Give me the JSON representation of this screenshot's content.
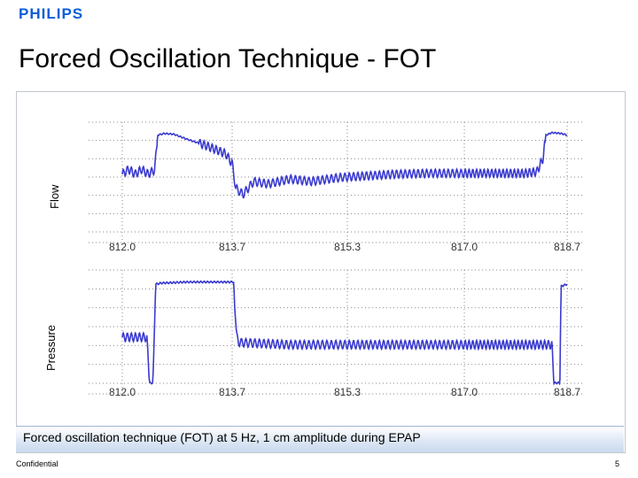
{
  "header": {
    "logo": "PHILIPS",
    "title": "Forced Oscillation Technique - FOT"
  },
  "caption": "Forced oscillation technique (FOT) at 5 Hz,  1 cm amplitude during EPAP",
  "footer": {
    "left": "Confidential",
    "page": "5"
  },
  "colors": {
    "trace": "#3a3ad0",
    "grid": "#8a8a8a",
    "brand": "#0b5ed7"
  },
  "chart_data": [
    {
      "type": "line",
      "ylabel": "Flow",
      "x_ticks": [
        "812.0",
        "813.7",
        "815.3",
        "817.0",
        "818.7"
      ],
      "xlim": [
        812.0,
        818.7
      ],
      "ylim": [
        0,
        1
      ],
      "grid": true,
      "series": [
        {
          "x": [
            812.0,
            812.1,
            812.2,
            812.3,
            812.4,
            812.5,
            812.55,
            812.65,
            812.8,
            813.0,
            813.3,
            813.6,
            813.7,
            813.75,
            813.85,
            814.0,
            814.2,
            814.5,
            814.8,
            815.2,
            815.6,
            816.0,
            816.5,
            817.0,
            817.5,
            818.0,
            818.2,
            818.3,
            818.35,
            818.45,
            818.6,
            818.7
          ],
          "y": [
            0.47,
            0.53,
            0.47,
            0.53,
            0.47,
            0.52,
            0.95,
            0.97,
            0.96,
            0.9,
            0.82,
            0.72,
            0.6,
            0.3,
            0.22,
            0.38,
            0.35,
            0.41,
            0.38,
            0.43,
            0.45,
            0.47,
            0.48,
            0.48,
            0.48,
            0.48,
            0.5,
            0.66,
            0.95,
            0.98,
            0.97,
            0.95
          ],
          "oscillation_amplitude": 0.05
        }
      ]
    },
    {
      "type": "line",
      "ylabel": "Pressure",
      "x_ticks": [
        "812.0",
        "813.7",
        "815.3",
        "817.0",
        "818.7"
      ],
      "xlim": [
        812.0,
        818.7
      ],
      "ylim": [
        0,
        1
      ],
      "grid": true,
      "series": [
        {
          "x": [
            812.0,
            812.15,
            812.3,
            812.38,
            812.42,
            812.47,
            812.52,
            812.6,
            813.0,
            813.5,
            813.72,
            813.76,
            813.8,
            814.5,
            815.3,
            816.0,
            817.0,
            818.0,
            818.45,
            818.48,
            818.52,
            818.58,
            818.6,
            818.7
          ],
          "y": [
            0.45,
            0.45,
            0.45,
            0.45,
            0.02,
            0.02,
            0.95,
            0.96,
            0.97,
            0.97,
            0.97,
            0.46,
            0.4,
            0.38,
            0.38,
            0.38,
            0.38,
            0.38,
            0.38,
            0.02,
            0.02,
            0.02,
            0.93,
            0.95
          ],
          "oscillation_amplitude": 0.04
        }
      ]
    }
  ]
}
